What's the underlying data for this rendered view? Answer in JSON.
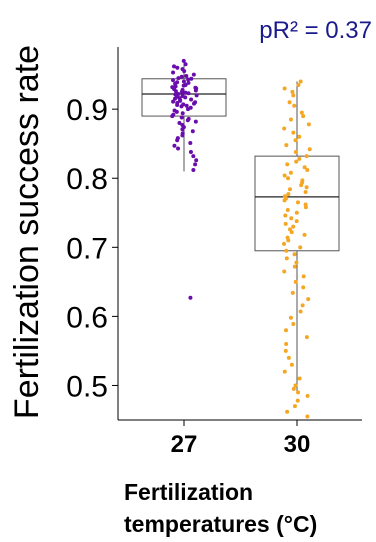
{
  "chart_data": {
    "type": "box",
    "annotation": "pR² = 0.37",
    "annotation_color": "#1a1a8c",
    "xlabel_line1": "Fertilization",
    "xlabel_line2": "temperatures (°C)",
    "ylabel": "Fertilization success rate",
    "categories": [
      "27",
      "30"
    ],
    "colors": [
      "#6a0dad",
      "#f5a623"
    ],
    "ylim": [
      0.45,
      0.99
    ],
    "yticks": [
      0.5,
      0.6,
      0.7,
      0.8,
      0.9
    ],
    "ytick_labels": [
      "0.5",
      "0.6",
      "0.7",
      "0.8",
      "0.9"
    ],
    "boxes": [
      {
        "q1": 0.89,
        "median": 0.922,
        "q3": 0.944,
        "whisker_low": 0.81,
        "whisker_high": 0.97
      },
      {
        "q1": 0.695,
        "median": 0.773,
        "q3": 0.832,
        "whisker_low": 0.49,
        "whisker_high": 0.94
      }
    ],
    "points": [
      [
        0.97,
        0.965,
        0.962,
        0.96,
        0.958,
        0.955,
        0.953,
        0.95,
        0.948,
        0.947,
        0.945,
        0.944,
        0.943,
        0.942,
        0.94,
        0.939,
        0.938,
        0.937,
        0.935,
        0.934,
        0.933,
        0.932,
        0.931,
        0.93,
        0.929,
        0.928,
        0.927,
        0.926,
        0.925,
        0.924,
        0.923,
        0.922,
        0.921,
        0.92,
        0.919,
        0.918,
        0.917,
        0.916,
        0.915,
        0.914,
        0.913,
        0.912,
        0.911,
        0.91,
        0.909,
        0.908,
        0.907,
        0.906,
        0.905,
        0.904,
        0.902,
        0.9,
        0.898,
        0.896,
        0.894,
        0.892,
        0.89,
        0.888,
        0.886,
        0.884,
        0.882,
        0.88,
        0.877,
        0.874,
        0.871,
        0.868,
        0.865,
        0.862,
        0.858,
        0.855,
        0.851,
        0.847,
        0.843,
        0.838,
        0.832,
        0.826,
        0.82,
        0.812,
        0.627
      ],
      [
        0.94,
        0.935,
        0.93,
        0.925,
        0.92,
        0.91,
        0.905,
        0.895,
        0.89,
        0.885,
        0.878,
        0.872,
        0.866,
        0.86,
        0.855,
        0.848,
        0.842,
        0.838,
        0.832,
        0.828,
        0.824,
        0.82,
        0.816,
        0.812,
        0.808,
        0.804,
        0.8,
        0.797,
        0.794,
        0.79,
        0.787,
        0.784,
        0.78,
        0.777,
        0.774,
        0.771,
        0.768,
        0.765,
        0.762,
        0.758,
        0.754,
        0.75,
        0.746,
        0.742,
        0.738,
        0.734,
        0.73,
        0.726,
        0.722,
        0.718,
        0.714,
        0.71,
        0.705,
        0.7,
        0.695,
        0.69,
        0.684,
        0.678,
        0.672,
        0.665,
        0.658,
        0.65,
        0.642,
        0.634,
        0.625,
        0.616,
        0.607,
        0.598,
        0.589,
        0.58,
        0.57,
        0.56,
        0.55,
        0.54,
        0.53,
        0.52,
        0.51,
        0.5,
        0.495,
        0.49,
        0.485,
        0.478,
        0.47,
        0.462,
        0.455
      ]
    ]
  }
}
